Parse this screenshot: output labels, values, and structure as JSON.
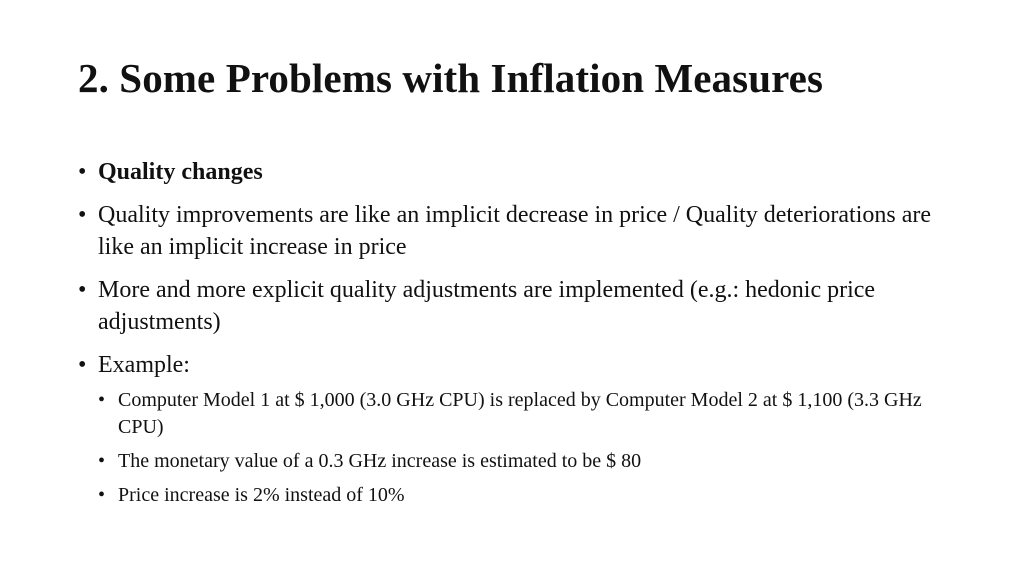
{
  "slide": {
    "title": "2. Some Problems with Inflation Measures",
    "bullets": [
      {
        "text": "Quality changes"
      },
      {
        "text": "Quality improvements are like an implicit decrease in price / Quality deteriorations are like an implicit increase in price"
      },
      {
        "text": "More and more explicit quality adjustments are implemented (e.g.: hedonic price adjustments)"
      },
      {
        "text": "Example:",
        "sub": [
          {
            "text": "Computer Model 1 at $ 1,000 (3.0 GHz CPU) is replaced by Computer Model 2 at $ 1,100 (3.3 GHz CPU)"
          },
          {
            "text": "The monetary value of a 0.3 GHz increase is estimated to be $ 80"
          },
          {
            "text": "Price increase is 2% instead of 10%"
          }
        ]
      }
    ],
    "bullet_glyph": "•"
  }
}
